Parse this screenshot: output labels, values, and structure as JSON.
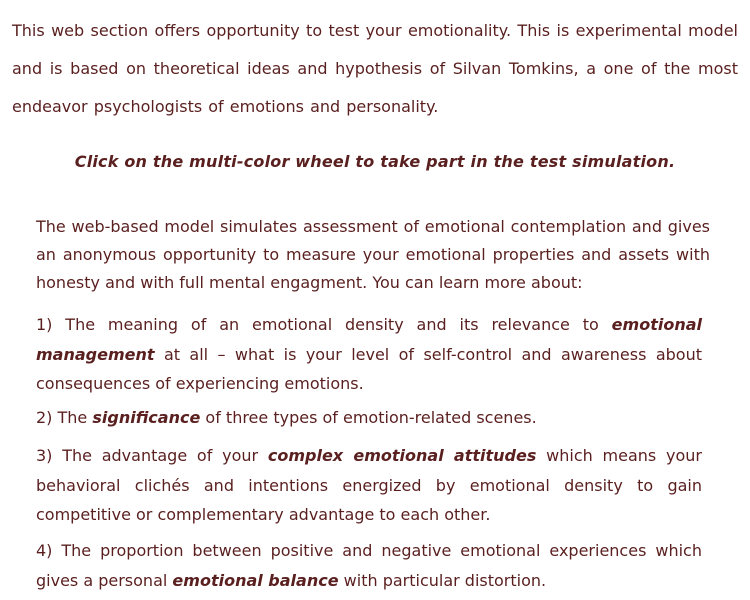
{
  "intro": "This web section offers opportunity to test your emotionality. This is experimental model and is based on theoretical ideas and hypothesis of Silvan Tomkins, a one of the most endeavor psychologists of emotions and personality.",
  "cta": "Click on the multi-color wheel to take part in the test simulation.",
  "body": "The web-based model simulates assessment of emotional contemplation and gives an anonymous opportunity to measure your emotional properties and assets with honesty and with full mental engagment. You can learn more about:",
  "items": [
    {
      "number": "1)",
      "before": "The meaning of an emotional density and its relevance to",
      "emphasis": "emotional management",
      "after": "at all – what is your level of self-control and awareness about consequences of experiencing emotions."
    },
    {
      "number": "2)",
      "before": "The",
      "emphasis": "significance",
      "after": "of three types of emotion-related scenes."
    },
    {
      "number": "3)",
      "before": "The advantage of your",
      "emphasis": "complex emotional attitudes",
      "after": "which means your behavioral clichés and intentions energized by emotional density to gain competitive or complementary advantage to each other."
    },
    {
      "number": "4)",
      "before": "The proportion between positive and negative emotional experiences which gives a personal",
      "emphasis": "emotional balance",
      "after": "with particular distortion."
    }
  ]
}
